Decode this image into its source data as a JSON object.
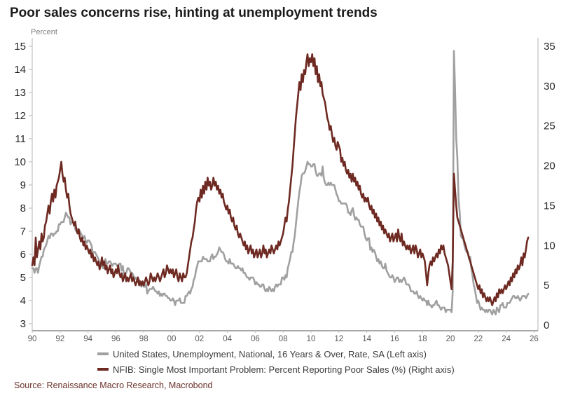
{
  "title": "Poor sales concerns rise, hinting at unemployment trends",
  "source": "Source: Renaissance Macro Research, Macrobond",
  "colors": {
    "unemployment_line": "#a0a0a0",
    "poor_sales_line": "#6e2a22",
    "axis_line": "#c0c0c0",
    "bottom_axis_line": "#a8a8a8",
    "axis_value_text": "#262626",
    "x_tick_text": "#595959"
  },
  "legend": [
    {
      "label": "United States, Unemployment, National, 16 Years & Over, Rate, SA (Left axis)"
    },
    {
      "label": "NFIB: Single Most Important Problem: Percent Reporting Poor Sales (%) (Right axis)"
    }
  ],
  "chart_data": {
    "type": "line",
    "title": "Poor sales concerns rise, hinting at unemployment trends",
    "x_start_year": 1990,
    "x_step_months": 1,
    "grid": false,
    "legend_position": "bottom",
    "left_axis": {
      "label": "Percent",
      "min": 3,
      "max": 15,
      "ticks": [
        3,
        4,
        5,
        6,
        7,
        8,
        9,
        10,
        11,
        12,
        13,
        14,
        15
      ]
    },
    "right_axis": {
      "label": "",
      "min": 0,
      "max": 35,
      "ticks": [
        0,
        5,
        10,
        15,
        20,
        25,
        30,
        35
      ]
    },
    "x_ticks": [
      {
        "year": 1990,
        "label": "90"
      },
      {
        "year": 1992,
        "label": "92"
      },
      {
        "year": 1994,
        "label": "94"
      },
      {
        "year": 1996,
        "label": "96"
      },
      {
        "year": 1998,
        "label": "98"
      },
      {
        "year": 2000,
        "label": "00"
      },
      {
        "year": 2002,
        "label": "02"
      },
      {
        "year": 2004,
        "label": "04"
      },
      {
        "year": 2006,
        "label": "06"
      },
      {
        "year": 2008,
        "label": "08"
      },
      {
        "year": 2010,
        "label": "10"
      },
      {
        "year": 2012,
        "label": "12"
      },
      {
        "year": 2014,
        "label": "14"
      },
      {
        "year": 2016,
        "label": "16"
      },
      {
        "year": 2018,
        "label": "18"
      },
      {
        "year": 2020,
        "label": "20"
      },
      {
        "year": 2022,
        "label": "22"
      },
      {
        "year": 2024,
        "label": "24"
      },
      {
        "year": 2026,
        "label": "26"
      }
    ],
    "series": [
      {
        "name": "United States, Unemployment, National, 16 Years & Over, Rate, SA",
        "axis": "left",
        "color": "#a0a0a0",
        "values": [
          5.4,
          5.4,
          5.2,
          5.4,
          5.4,
          5.2,
          5.5,
          5.7,
          5.9,
          5.9,
          6.2,
          6.3,
          6.4,
          6.6,
          6.8,
          6.7,
          6.9,
          6.9,
          6.8,
          6.9,
          6.9,
          7.0,
          7.0,
          7.3,
          7.3,
          7.4,
          7.4,
          7.4,
          7.6,
          7.8,
          7.7,
          7.6,
          7.6,
          7.3,
          7.4,
          7.4,
          7.3,
          7.1,
          7.0,
          7.1,
          7.1,
          7.0,
          6.9,
          6.8,
          6.7,
          6.8,
          6.6,
          6.5,
          6.6,
          6.6,
          6.5,
          6.4,
          6.1,
          6.1,
          6.1,
          6.0,
          5.9,
          5.8,
          5.6,
          5.5,
          5.6,
          5.4,
          5.4,
          5.8,
          5.6,
          5.6,
          5.7,
          5.7,
          5.6,
          5.5,
          5.6,
          5.6,
          5.6,
          5.5,
          5.5,
          5.6,
          5.6,
          5.3,
          5.5,
          5.1,
          5.2,
          5.2,
          5.4,
          5.4,
          5.3,
          5.2,
          5.2,
          5.1,
          4.9,
          5.0,
          4.9,
          4.8,
          4.9,
          4.7,
          4.6,
          4.7,
          4.6,
          4.6,
          4.7,
          4.3,
          4.4,
          4.5,
          4.5,
          4.5,
          4.6,
          4.5,
          4.4,
          4.4,
          4.3,
          4.4,
          4.2,
          4.3,
          4.2,
          4.3,
          4.3,
          4.2,
          4.2,
          4.1,
          4.1,
          4.0,
          4.0,
          4.1,
          4.0,
          3.8,
          4.0,
          4.0,
          4.0,
          4.1,
          3.9,
          3.9,
          3.9,
          3.9,
          4.2,
          4.2,
          4.3,
          4.4,
          4.3,
          4.5,
          4.6,
          4.9,
          5.0,
          5.3,
          5.5,
          5.7,
          5.7,
          5.7,
          5.7,
          5.9,
          5.8,
          5.8,
          5.8,
          5.7,
          5.7,
          5.7,
          5.9,
          6.0,
          5.8,
          5.9,
          5.9,
          6.0,
          6.1,
          6.3,
          6.2,
          6.1,
          6.1,
          6.0,
          5.8,
          5.7,
          5.7,
          5.6,
          5.8,
          5.6,
          5.6,
          5.6,
          5.5,
          5.4,
          5.4,
          5.5,
          5.4,
          5.4,
          5.3,
          5.4,
          5.2,
          5.2,
          5.1,
          5.0,
          5.0,
          4.9,
          5.0,
          5.0,
          5.0,
          4.9,
          4.7,
          4.8,
          4.7,
          4.7,
          4.6,
          4.6,
          4.7,
          4.7,
          4.5,
          4.4,
          4.5,
          4.4,
          4.6,
          4.5,
          4.4,
          4.5,
          4.4,
          4.6,
          4.7,
          4.6,
          4.7,
          4.7,
          4.7,
          5.0,
          5.0,
          4.9,
          5.1,
          5.0,
          5.4,
          5.6,
          5.8,
          6.1,
          6.1,
          6.5,
          6.8,
          7.3,
          7.8,
          8.3,
          8.7,
          9.0,
          9.4,
          9.5,
          9.5,
          9.6,
          9.8,
          10.0,
          9.9,
          9.9,
          9.8,
          9.8,
          9.9,
          9.9,
          9.6,
          9.4,
          9.4,
          9.5,
          9.5,
          9.4,
          9.8,
          9.3,
          9.1,
          9.0,
          9.0,
          9.1,
          9.0,
          9.1,
          9.0,
          9.0,
          9.0,
          8.8,
          8.6,
          8.5,
          8.3,
          8.3,
          8.2,
          8.2,
          8.2,
          8.2,
          8.2,
          8.1,
          7.8,
          7.8,
          7.7,
          7.9,
          8.0,
          7.7,
          7.5,
          7.6,
          7.5,
          7.5,
          7.3,
          7.2,
          7.2,
          7.2,
          6.9,
          6.7,
          6.6,
          6.7,
          6.7,
          6.2,
          6.3,
          6.1,
          6.2,
          6.1,
          5.9,
          5.7,
          5.8,
          5.6,
          5.7,
          5.5,
          5.4,
          5.4,
          5.6,
          5.3,
          5.2,
          5.1,
          5.0,
          5.0,
          5.1,
          5.0,
          4.8,
          4.9,
          5.0,
          5.0,
          4.8,
          4.9,
          4.8,
          4.9,
          5.0,
          4.9,
          4.7,
          4.7,
          4.7,
          4.6,
          4.4,
          4.4,
          4.4,
          4.3,
          4.3,
          4.4,
          4.2,
          4.1,
          4.2,
          4.1,
          4.0,
          4.1,
          4.0,
          4.0,
          3.8,
          4.0,
          3.8,
          3.8,
          3.7,
          3.8,
          3.8,
          3.9,
          4.0,
          3.8,
          3.8,
          3.7,
          3.6,
          3.7,
          3.7,
          3.7,
          3.5,
          3.6,
          3.6,
          3.6,
          3.6,
          3.5,
          4.4,
          14.8,
          13.2,
          11.0,
          10.2,
          8.4,
          7.8,
          6.8,
          6.7,
          6.7,
          6.4,
          6.2,
          6.1,
          6.1,
          5.8,
          5.9,
          5.4,
          5.1,
          4.7,
          4.5,
          4.2,
          3.9,
          4.0,
          3.8,
          3.6,
          3.7,
          3.6,
          3.6,
          3.5,
          3.6,
          3.5,
          3.6,
          3.6,
          3.5,
          3.4,
          3.6,
          3.5,
          3.4,
          3.7,
          3.6,
          3.5,
          3.8,
          3.8,
          3.9,
          3.7,
          3.7,
          3.7,
          3.9,
          3.9,
          3.9,
          4.0,
          4.1,
          4.2,
          4.2,
          4.1,
          4.1,
          4.2,
          4.1,
          4.0,
          4.1,
          4.2,
          4.2,
          4.2,
          4.1,
          4.2,
          4.3
        ]
      },
      {
        "name": "NFIB: Single Most Important Problem: Percent Reporting Poor Sales (%)",
        "axis": "right",
        "color": "#6e2a22",
        "values": [
          7.5,
          8.5,
          7.5,
          11,
          8.5,
          9.5,
          10.5,
          9.5,
          11.5,
          10.5,
          11,
          12.5,
          13,
          14,
          15,
          14,
          15.5,
          16.5,
          15.5,
          17,
          16,
          17.5,
          18,
          18.5,
          19.5,
          20.5,
          19,
          18,
          18.5,
          17,
          16,
          16.5,
          15,
          14,
          13.5,
          13,
          12.5,
          13,
          12,
          11.5,
          12,
          11,
          10.5,
          11,
          10,
          10.5,
          9.5,
          10,
          9.5,
          9,
          9.5,
          8.5,
          9,
          8,
          8.5,
          8,
          7.5,
          8,
          7,
          7.5,
          8.5,
          7.5,
          8,
          7,
          7.5,
          6.5,
          7,
          7.5,
          6.5,
          7,
          6,
          6.5,
          7,
          6.5,
          7.5,
          6.5,
          6,
          6.5,
          5.5,
          6,
          6.5,
          5.5,
          6,
          5.5,
          6,
          6.5,
          5.5,
          6,
          5.5,
          5,
          5.5,
          6,
          5,
          5.5,
          5,
          5.5,
          5,
          5.5,
          6,
          5.5,
          5,
          5.5,
          6.5,
          6,
          5.5,
          6,
          5.5,
          6,
          6.5,
          6,
          5.5,
          6,
          6.5,
          7,
          6,
          6.5,
          7.5,
          7,
          6.5,
          7,
          6.5,
          7,
          6,
          6.5,
          7,
          6,
          5.5,
          6.5,
          6,
          5.5,
          6.5,
          6,
          6,
          6.5,
          7.5,
          8.5,
          9.5,
          10.5,
          11,
          12,
          13,
          14.5,
          15.5,
          16,
          15.5,
          17,
          16,
          17.5,
          16.5,
          18,
          17,
          18.5,
          17.5,
          18,
          17,
          17.5,
          18.5,
          17.5,
          18,
          17,
          17.5,
          16.5,
          17,
          16,
          16.5,
          15.5,
          15,
          14.5,
          15,
          14,
          14.5,
          13.5,
          13,
          13.5,
          12.5,
          12,
          12.5,
          11.5,
          11,
          11.5,
          11,
          10.5,
          10,
          10.5,
          9.5,
          10,
          9,
          9.5,
          10,
          9,
          9.5,
          8.5,
          9,
          9.5,
          8.5,
          9,
          9.5,
          8.5,
          9,
          10,
          9,
          9.5,
          8.5,
          9,
          9.5,
          9,
          10,
          9.5,
          9,
          9.5,
          10,
          9.5,
          10.5,
          10,
          10.5,
          11,
          11.5,
          12.5,
          13.5,
          13,
          14.5,
          15.5,
          17,
          18.5,
          20,
          22,
          24,
          26,
          27.5,
          29,
          30.5,
          29.5,
          31.5,
          30.5,
          32,
          31.5,
          33,
          34,
          32.5,
          33.5,
          33,
          34,
          32.5,
          33.5,
          31.5,
          32.5,
          30.5,
          31.5,
          30,
          30.5,
          29,
          28.5,
          28,
          27,
          26,
          25.5,
          24.5,
          25,
          24,
          23,
          23.5,
          22.5,
          22,
          23,
          22.5,
          22,
          20.5,
          21,
          20,
          20.5,
          19.5,
          19,
          19.5,
          18.5,
          19,
          18,
          19,
          18,
          18.5,
          17.5,
          18,
          17,
          17.5,
          16.5,
          16,
          16.5,
          15.5,
          16,
          15.5,
          16,
          15,
          14.5,
          15,
          14,
          14.5,
          13.5,
          14,
          13,
          13.5,
          12.5,
          13,
          12,
          12.5,
          11.5,
          12,
          11.5,
          11,
          11.5,
          10.5,
          11,
          11.5,
          10.5,
          11,
          11.5,
          10.5,
          12,
          11,
          10.5,
          11.5,
          10,
          10.5,
          10,
          9.5,
          10,
          9.5,
          10,
          9,
          9.5,
          10,
          9,
          10,
          9.5,
          8.5,
          9,
          9.5,
          8.5,
          9,
          8.5,
          8,
          6.5,
          5,
          6.5,
          7.5,
          8,
          7.5,
          8.5,
          8,
          8.5,
          9,
          8.5,
          9.5,
          9,
          10,
          9.5,
          10,
          9,
          8.5,
          8,
          7.5,
          6.5,
          5.5,
          4.5,
          8,
          19,
          17,
          15,
          13.5,
          13,
          12.5,
          12,
          11.5,
          11,
          10.5,
          10,
          9.5,
          9,
          8.5,
          8,
          7.5,
          7,
          6.5,
          6,
          5.5,
          5,
          4.5,
          5,
          4,
          4.5,
          3.5,
          4,
          3.5,
          3,
          3.5,
          3,
          3.5,
          3,
          2.5,
          3,
          3.5,
          3,
          4,
          3.5,
          4.5,
          4,
          4.5,
          4,
          4.5,
          5,
          4.5,
          5,
          5.5,
          5,
          6,
          5.5,
          6.5,
          6,
          7,
          6.5,
          7.5,
          7,
          7.5,
          8.5,
          7.5,
          9,
          8.5,
          9.5,
          10.5,
          11
        ]
      }
    ]
  }
}
